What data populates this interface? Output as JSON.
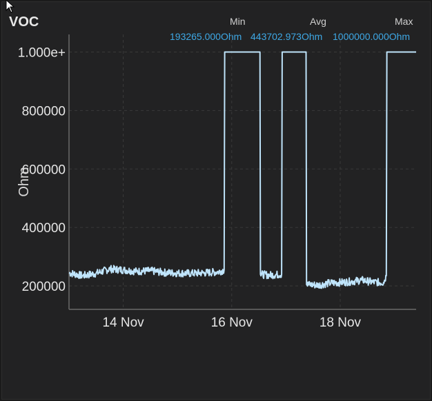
{
  "panel": {
    "title": "VOC"
  },
  "stats": {
    "min_label": "Min",
    "avg_label": "Avg",
    "max_label": "Max",
    "min_value": "193265.000Ohm",
    "avg_value": "443702.973Ohm",
    "max_value": "1000000.000Ohm"
  },
  "colors": {
    "line": "#bfe4fb",
    "accent": "#3ea8e5",
    "grid": "#3a3a3a",
    "axis": "#6a6a6a"
  },
  "chart_data": {
    "type": "line",
    "title": "VOC",
    "ylabel": "Ohm",
    "xlabel": "",
    "x_ticks": [
      "14 Nov",
      "16 Nov",
      "18 Nov"
    ],
    "y_ticks": [
      "200000",
      "400000",
      "600000",
      "800000",
      "1.000e+"
    ],
    "y_tick_values": [
      200000,
      400000,
      600000,
      800000,
      1000000
    ],
    "ylim": [
      120000,
      1060000
    ],
    "xlim": [
      "2023-11-13",
      "2023-11-19.4"
    ],
    "grid": true,
    "series": [
      {
        "values_description_free": true,
        "points": [
          [
            "2023-11-13.00",
            245000
          ],
          [
            "2023-11-13.25",
            235000
          ],
          [
            "2023-11-13.50",
            243000
          ],
          [
            "2023-11-13.75",
            258000
          ],
          [
            "2023-11-14.00",
            255000
          ],
          [
            "2023-11-14.25",
            250000
          ],
          [
            "2023-11-14.50",
            252000
          ],
          [
            "2023-11-14.75",
            246000
          ],
          [
            "2023-11-15.00",
            244000
          ],
          [
            "2023-11-15.25",
            243000
          ],
          [
            "2023-11-15.50",
            245000
          ],
          [
            "2023-11-15.75",
            248000
          ],
          [
            "2023-11-15.86",
            255000
          ],
          [
            "2023-11-15.87",
            1000000
          ],
          [
            "2023-11-16.52",
            1000000
          ],
          [
            "2023-11-16.53",
            240000
          ],
          [
            "2023-11-16.70",
            237000
          ],
          [
            "2023-11-16.92",
            240000
          ],
          [
            "2023-11-16.93",
            1000000
          ],
          [
            "2023-11-17.37",
            1000000
          ],
          [
            "2023-11-17.38",
            205000
          ],
          [
            "2023-11-17.60",
            203000
          ],
          [
            "2023-11-17.80",
            210000
          ],
          [
            "2023-11-18.00",
            212000
          ],
          [
            "2023-11-18.20",
            215000
          ],
          [
            "2023-11-18.40",
            220000
          ],
          [
            "2023-11-18.60",
            213000
          ],
          [
            "2023-11-18.80",
            212000
          ],
          [
            "2023-11-18.85",
            235000
          ],
          [
            "2023-11-18.86",
            1000000
          ],
          [
            "2023-11-19.40",
            1000000
          ]
        ]
      }
    ]
  }
}
